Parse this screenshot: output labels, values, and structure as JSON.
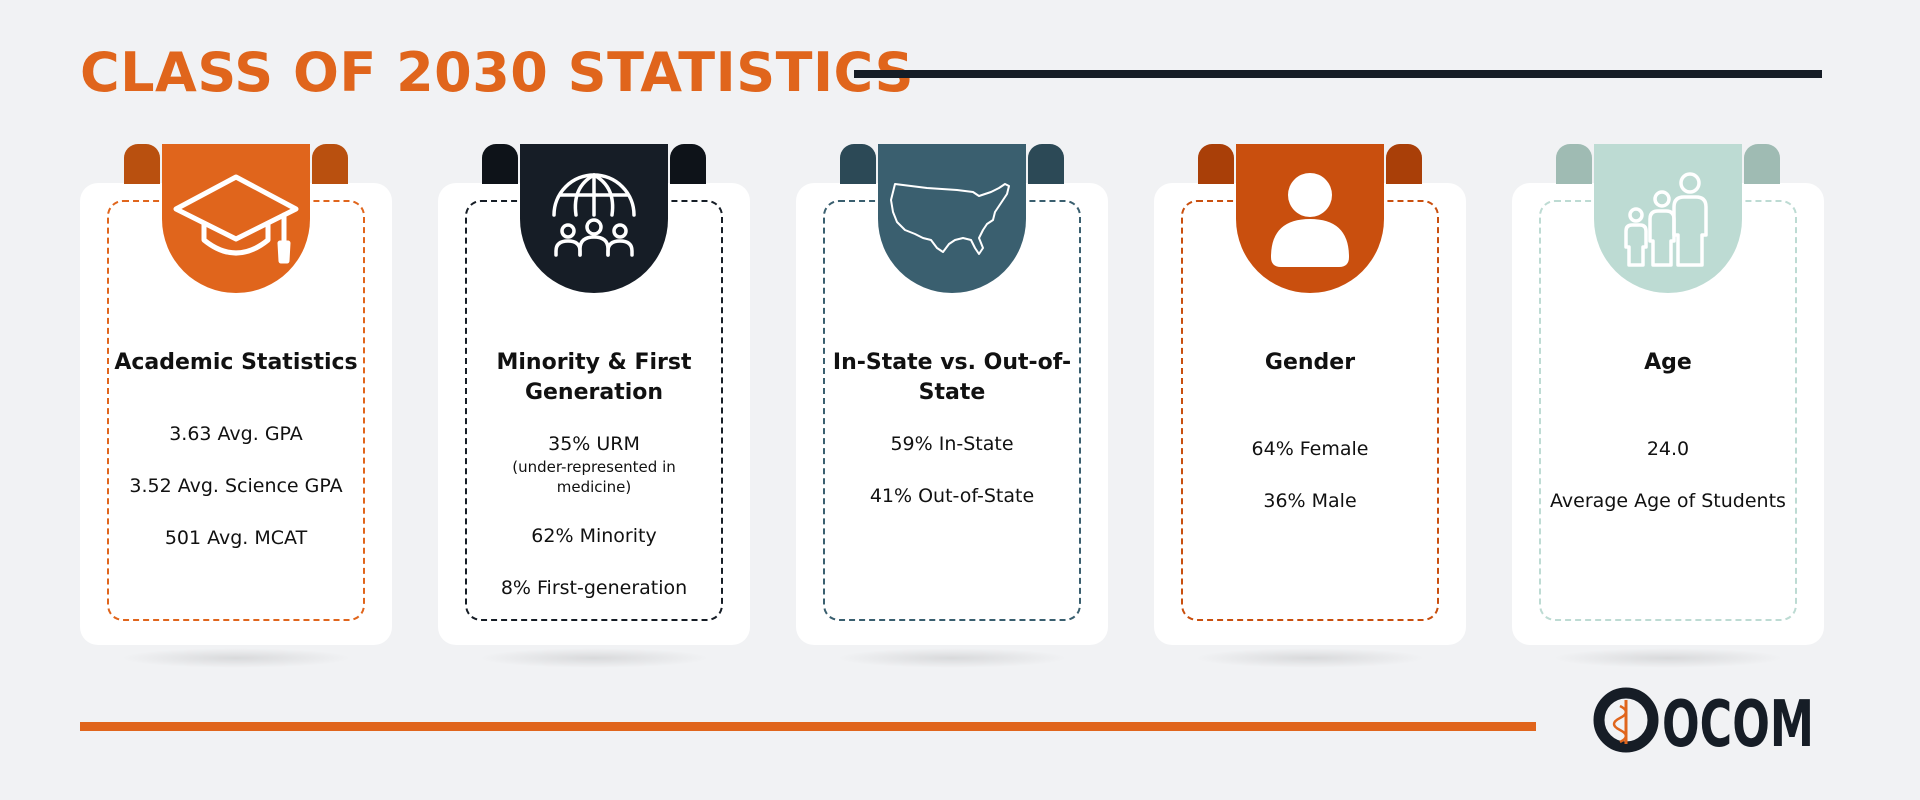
{
  "header": {
    "title": "CLASS OF 2030 STATISTICS"
  },
  "colors": {
    "orange": "#e0651c",
    "dark": "#161d26",
    "slate": "#3a5f6f",
    "rust": "#c94f0e",
    "mint": "#bddbd3"
  },
  "cards": [
    {
      "icon": "graduation-cap-icon",
      "title": "Academic Statistics",
      "stats": [
        "3.63 Avg. GPA",
        "3.52 Avg. Science GPA",
        "501 Avg. MCAT"
      ]
    },
    {
      "icon": "globe-people-icon",
      "title": "Minority & First Generation",
      "stat_1": "35% URM",
      "stat_1_note": "(under-represented in medicine)",
      "stat_2": "62% Minority",
      "stat_3": "8% First-generation"
    },
    {
      "icon": "usa-map-icon",
      "title": "In-State vs. Out-of-State",
      "stats": [
        "59% In-State",
        "41% Out-of-State"
      ]
    },
    {
      "icon": "person-icon",
      "title": "Gender",
      "stats": [
        "64% Female",
        "36% Male"
      ]
    },
    {
      "icon": "family-icon",
      "title": "Age",
      "stats": [
        "24.0",
        "Average Age of Students"
      ]
    }
  ],
  "footer": {
    "logo_text": "OCOM"
  }
}
